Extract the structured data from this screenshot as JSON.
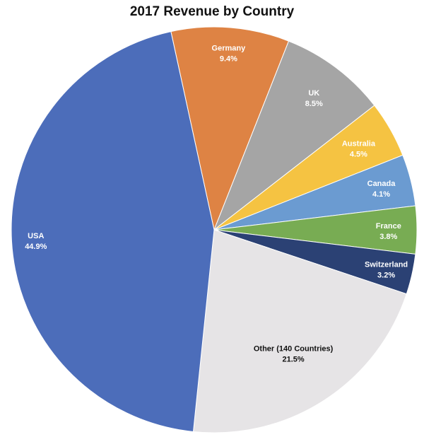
{
  "chart_data": {
    "type": "pie",
    "title": "2017 Revenue by Country",
    "slices": [
      {
        "label": "Germany",
        "value": 9.4,
        "value_label": "9.4%",
        "color": "#DE8344",
        "text_color": "#FFFFFF"
      },
      {
        "label": "UK",
        "value": 8.5,
        "value_label": "8.5%",
        "color": "#A5A5A5",
        "text_color": "#FFFFFF"
      },
      {
        "label": "Australia",
        "value": 4.5,
        "value_label": "4.5%",
        "color": "#F5C342",
        "text_color": "#FFFFFF"
      },
      {
        "label": "Canada",
        "value": 4.1,
        "value_label": "4.1%",
        "color": "#6B9BD1",
        "text_color": "#FFFFFF"
      },
      {
        "label": "France",
        "value": 3.8,
        "value_label": "3.8%",
        "color": "#78AC53",
        "text_color": "#FFFFFF"
      },
      {
        "label": "Switzerland",
        "value": 3.2,
        "value_label": "3.2%",
        "color": "#2B4174",
        "text_color": "#FFFFFF"
      },
      {
        "label": "Other (140 Countries)",
        "value": 21.5,
        "value_label": "21.5%",
        "color": "#E6E4E6",
        "text_color": "#111111"
      },
      {
        "label": "USA",
        "value": 44.9,
        "value_label": "44.9%",
        "color": "#4C6DBA",
        "text_color": "#FFFFFF"
      }
    ]
  }
}
